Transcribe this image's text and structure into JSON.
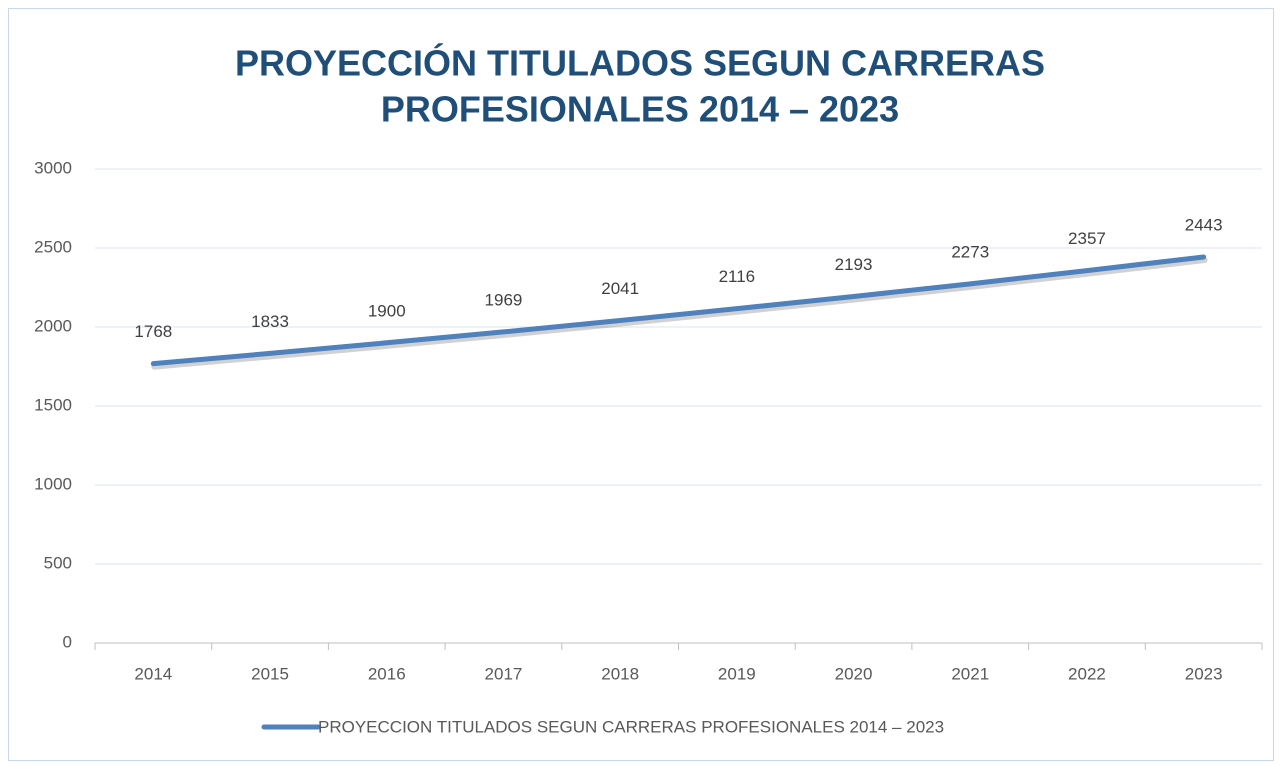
{
  "chart_data": {
    "type": "line",
    "title": [
      "PROYECCIÓN TITULADOS SEGUN CARRERAS",
      "PROFESIONALES 2014 – 2023"
    ],
    "categories": [
      "2014",
      "2015",
      "2016",
      "2017",
      "2018",
      "2019",
      "2020",
      "2021",
      "2022",
      "2023"
    ],
    "series": [
      {
        "name": "PROYECCION TITULADOS SEGUN CARRERAS PROFESIONALES 2014 – 2023",
        "color": "#4f81bd",
        "values": [
          1768,
          1833,
          1900,
          1969,
          2041,
          2116,
          2193,
          2273,
          2357,
          2443
        ]
      }
    ],
    "ylim": [
      0,
      3000
    ],
    "yticks": [
      0,
      500,
      1000,
      1500,
      2000,
      2500,
      3000
    ],
    "grid": true,
    "legend": "bottom"
  }
}
